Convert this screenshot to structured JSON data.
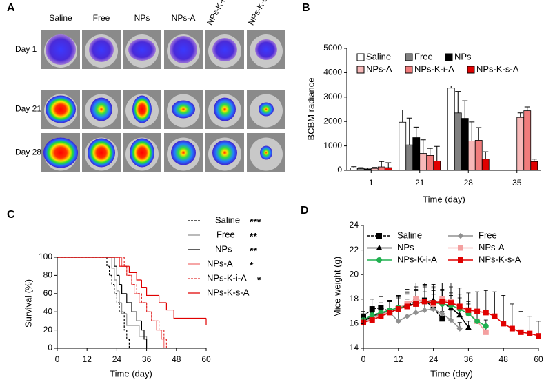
{
  "panel_a": {
    "panel_label": "A",
    "columns": [
      "Saline",
      "Free",
      "NPs",
      "NPs-A",
      "NPs-K-i-A",
      "NPs-K-s-A"
    ],
    "rows": [
      "Day 1",
      "Day 21",
      "Day 28"
    ]
  },
  "chart_data": [
    {
      "type": "bar",
      "panel_label": "B",
      "x_label": "Time (day)",
      "y_label": "BCBM radiance",
      "categories": [
        "1",
        "21",
        "28",
        "35"
      ],
      "ylim": [
        0,
        5000
      ],
      "yticks": [
        0,
        1000,
        2000,
        3000,
        4000,
        5000
      ],
      "series": [
        {
          "name": "Saline",
          "color": "#ffffff",
          "values": [
            100,
            1970,
            3370,
            null
          ],
          "errors": [
            50,
            500,
            90,
            null
          ]
        },
        {
          "name": "Free",
          "color": "#808080",
          "values": [
            70,
            1040,
            2350,
            null
          ],
          "errors": [
            40,
            1100,
            880,
            null
          ]
        },
        {
          "name": "NPs",
          "color": "#000000",
          "values": [
            60,
            1340,
            2130,
            null
          ],
          "errors": [
            40,
            430,
            720,
            null
          ]
        },
        {
          "name": "NPs-A",
          "color": "#f7b8b8",
          "values": [
            80,
            690,
            1200,
            2170
          ],
          "errors": [
            40,
            560,
            780,
            180
          ]
        },
        {
          "name": "NPs-K-i-A",
          "color": "#f07c7c",
          "values": [
            140,
            610,
            1230,
            2440
          ],
          "errors": [
            220,
            290,
            520,
            160
          ]
        },
        {
          "name": "NPs-K-s-A",
          "color": "#e00000",
          "values": [
            110,
            380,
            460,
            360
          ],
          "errors": [
            200,
            600,
            300,
            100
          ]
        }
      ]
    },
    {
      "type": "step",
      "panel_label": "C",
      "x_label": "Time  (day)",
      "y_label": "Survival (%)",
      "xlim": [
        0,
        60
      ],
      "xticks": [
        0,
        12,
        24,
        36,
        48,
        60
      ],
      "ylim": [
        0,
        100
      ],
      "yticks": [
        0,
        20,
        40,
        60,
        80,
        100
      ],
      "series": [
        {
          "name": "Saline",
          "significance": "***",
          "color": "#000000",
          "dashed": true,
          "x": [
            0,
            20,
            21,
            22,
            23,
            24,
            25,
            27,
            28,
            29
          ],
          "values": [
            100,
            90,
            80,
            70,
            60,
            50,
            40,
            20,
            10,
            0
          ]
        },
        {
          "name": "Free",
          "significance": "**",
          "color": "#909090",
          "dashed": false,
          "x": [
            0,
            22,
            23,
            24,
            25,
            26,
            28,
            33,
            36
          ],
          "values": [
            100,
            88,
            75,
            63,
            50,
            38,
            25,
            13,
            0
          ]
        },
        {
          "name": "NPs",
          "significance": "**",
          "color": "#000000",
          "dashed": false,
          "x": [
            0,
            23,
            24,
            25,
            26,
            28,
            30,
            32,
            34,
            35,
            36
          ],
          "values": [
            100,
            90,
            80,
            70,
            60,
            50,
            40,
            30,
            20,
            10,
            0
          ]
        },
        {
          "name": "NPs-A",
          "significance": "*",
          "color": "#f07070",
          "dashed": false,
          "x": [
            0,
            26,
            28,
            30,
            31,
            33,
            36,
            38,
            40,
            42,
            43
          ],
          "values": [
            100,
            90,
            80,
            70,
            60,
            50,
            40,
            30,
            20,
            10,
            0
          ]
        },
        {
          "name": "NPs-K-i-A",
          "significance": "*",
          "color": "#e03030",
          "dashed": true,
          "x": [
            0,
            27,
            28,
            30,
            32,
            34,
            36,
            38,
            41,
            43,
            44
          ],
          "values": [
            100,
            90,
            80,
            70,
            60,
            50,
            40,
            30,
            20,
            10,
            0
          ]
        },
        {
          "name": "NPs-K-s-A",
          "color": "#e00000",
          "dashed": false,
          "x": [
            0,
            25,
            29,
            32,
            34,
            36,
            41,
            44,
            47,
            60
          ],
          "values": [
            100,
            90,
            83,
            75,
            67,
            58,
            50,
            42,
            33,
            25
          ]
        }
      ]
    },
    {
      "type": "line",
      "panel_label": "D",
      "x_label": "Time (day)",
      "y_label": "Mice weight (g)",
      "xlim": [
        0,
        60
      ],
      "xticks": [
        0,
        12,
        24,
        36,
        48,
        60
      ],
      "ylim": [
        14,
        24
      ],
      "yticks": [
        14,
        16,
        18,
        20,
        22,
        24
      ],
      "series": [
        {
          "name": "Saline",
          "color": "#000000",
          "marker": "square",
          "dashed": true,
          "x": [
            0,
            3,
            6,
            9,
            12,
            15,
            18,
            21,
            24,
            27
          ],
          "values": [
            16.6,
            17.2,
            17.3,
            17.0,
            17.2,
            17.5,
            17.8,
            17.9,
            17.3,
            16.4
          ],
          "errors": [
            0.4,
            0.8,
            0.9,
            0.8,
            0.9,
            1.0,
            1.2,
            1.3,
            1.1,
            0.6
          ]
        },
        {
          "name": "Free",
          "color": "#909090",
          "marker": "diamond",
          "dashed": false,
          "x": [
            0,
            3,
            6,
            9,
            12,
            15,
            18,
            21,
            24,
            27,
            30,
            33
          ],
          "values": [
            16.1,
            16.5,
            16.8,
            16.9,
            16.2,
            16.6,
            16.9,
            17.1,
            17.2,
            16.8,
            16.3,
            15.6
          ],
          "errors": [
            0.3,
            0.6,
            0.7,
            0.9,
            0.9,
            1.4,
            1.8,
            1.5,
            1.2,
            1.0,
            0.8,
            0.5
          ]
        },
        {
          "name": "NPs",
          "color": "#000000",
          "marker": "triangle",
          "dashed": false,
          "x": [
            0,
            3,
            6,
            9,
            12,
            15,
            18,
            21,
            24,
            27,
            30,
            33,
            36
          ],
          "values": [
            16.2,
            16.6,
            16.9,
            17.0,
            17.3,
            17.5,
            17.6,
            17.8,
            17.9,
            17.7,
            17.3,
            16.7,
            15.7
          ],
          "errors": [
            0.4,
            0.6,
            0.8,
            0.9,
            1.0,
            1.1,
            1.4,
            1.5,
            1.3,
            1.1,
            1.0,
            0.8,
            0.5
          ]
        },
        {
          "name": "NPs-A",
          "color": "#f4a0a0",
          "marker": "square",
          "dashed": false,
          "x": [
            0,
            3,
            6,
            9,
            12,
            15,
            18,
            21,
            24,
            27,
            30,
            33,
            36,
            39,
            42
          ],
          "values": [
            16.1,
            16.4,
            16.7,
            17.0,
            17.3,
            17.6,
            18.0,
            17.8,
            17.6,
            18.0,
            17.8,
            17.4,
            16.9,
            16.2,
            15.3
          ],
          "errors": [
            0.3,
            0.5,
            0.7,
            0.9,
            1.0,
            1.2,
            1.3,
            1.2,
            1.1,
            1.3,
            1.2,
            1.0,
            0.9,
            0.8,
            0.6
          ]
        },
        {
          "name": "NPs-K-i-A",
          "color": "#20b050",
          "marker": "circle",
          "dashed": false,
          "x": [
            0,
            3,
            6,
            9,
            12,
            15,
            18,
            21,
            24,
            27,
            30,
            33,
            36,
            39,
            42
          ],
          "values": [
            16.3,
            16.7,
            16.9,
            17.1,
            17.3,
            17.4,
            17.6,
            17.8,
            17.7,
            17.6,
            17.5,
            17.2,
            16.8,
            16.2,
            15.8
          ],
          "errors": [
            0.3,
            0.5,
            0.6,
            0.8,
            0.9,
            1.0,
            1.1,
            1.3,
            1.2,
            1.1,
            1.0,
            0.9,
            0.8,
            0.7,
            0.5
          ]
        },
        {
          "name": "NPs-K-s-A",
          "color": "#e00000",
          "marker": "square",
          "dashed": false,
          "x": [
            0,
            3,
            6,
            9,
            12,
            15,
            18,
            21,
            24,
            27,
            30,
            33,
            36,
            39,
            42,
            45,
            48,
            51,
            54,
            57,
            60
          ],
          "values": [
            16.1,
            16.3,
            16.6,
            16.9,
            17.2,
            17.4,
            17.6,
            17.8,
            17.7,
            17.8,
            17.7,
            17.4,
            17.1,
            17.0,
            16.9,
            16.6,
            16.0,
            15.6,
            15.3,
            15.2,
            15.0
          ],
          "errors": [
            0.3,
            0.5,
            0.7,
            0.9,
            1.0,
            1.1,
            1.2,
            1.4,
            1.3,
            1.5,
            1.6,
            1.5,
            1.4,
            1.6,
            1.8,
            2.0,
            2.3,
            2.0,
            1.7,
            1.4,
            1.2
          ]
        }
      ]
    }
  ]
}
